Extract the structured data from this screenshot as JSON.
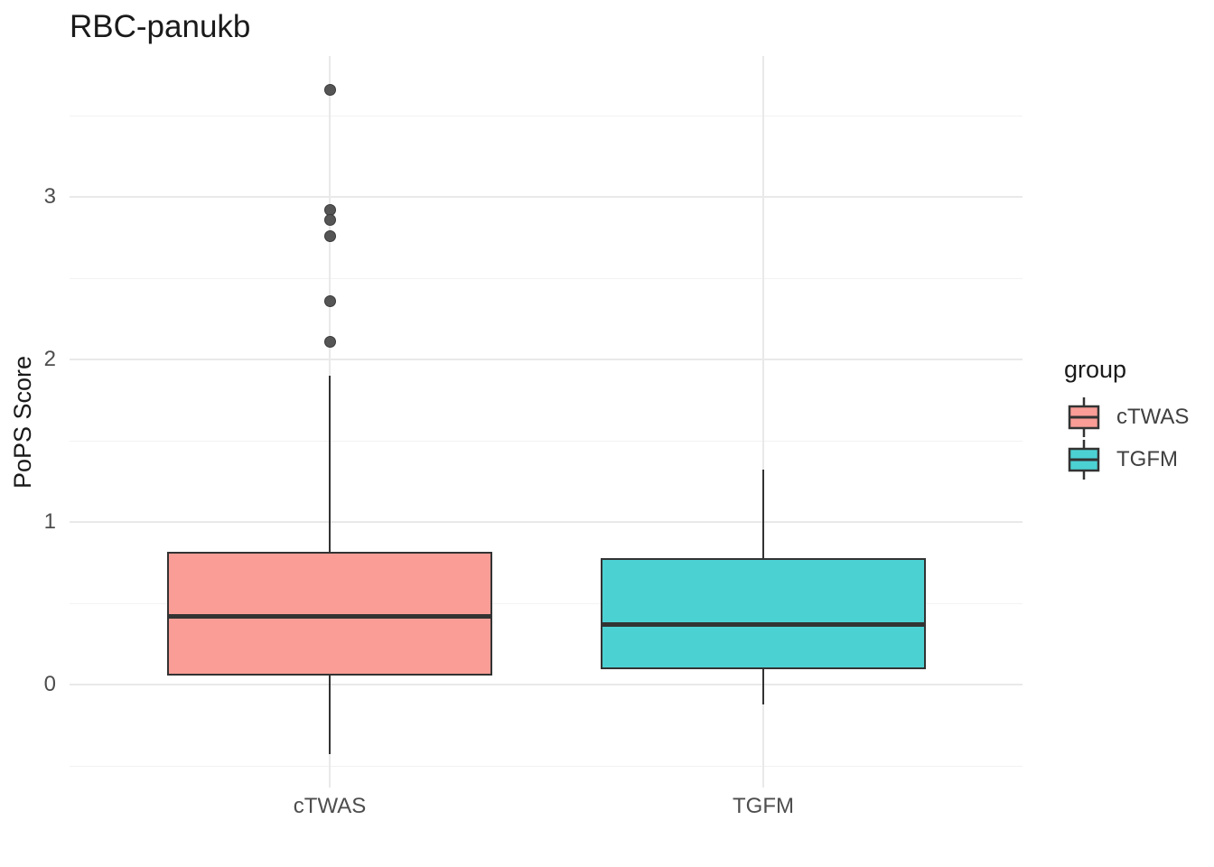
{
  "chart_data": {
    "type": "boxplot",
    "title": "RBC-panukb",
    "xlabel": "",
    "ylabel": "PoPS Score",
    "categories": [
      "cTWAS",
      "TGFM"
    ],
    "y_ticks": [
      0,
      1,
      2,
      3
    ],
    "y_minor_ticks": [
      -0.5,
      0.5,
      1.5,
      2.5,
      3.5
    ],
    "ylim": [
      -0.63,
      3.87
    ],
    "grid": true,
    "legend": {
      "title": "group",
      "position": "right",
      "entries": [
        {
          "label": "cTWAS",
          "fill": "#F99D96"
        },
        {
          "label": "TGFM",
          "fill": "#4CD1D3"
        }
      ]
    },
    "series": [
      {
        "name": "cTWAS",
        "fill": "#F99D96",
        "whisker_low": -0.43,
        "q1": 0.06,
        "median": 0.42,
        "q3": 0.81,
        "whisker_high": 1.9,
        "outliers": [
          3.66,
          2.92,
          2.86,
          2.76,
          2.36,
          2.11
        ]
      },
      {
        "name": "TGFM",
        "fill": "#4CD1D3",
        "whisker_low": -0.12,
        "q1": 0.1,
        "median": 0.37,
        "q3": 0.77,
        "whisker_high": 1.32,
        "outliers": []
      }
    ]
  },
  "colors": {
    "background": "#FFFFFF",
    "stroke": "#333333",
    "grid_major": "#E9E9E9",
    "grid_minor": "#F2F2F2",
    "outlier_fill": "#555555",
    "outlier_stroke": "#3A3A3A",
    "title_text": "#1A1A1A",
    "tick_text": "#4D4D4D"
  }
}
